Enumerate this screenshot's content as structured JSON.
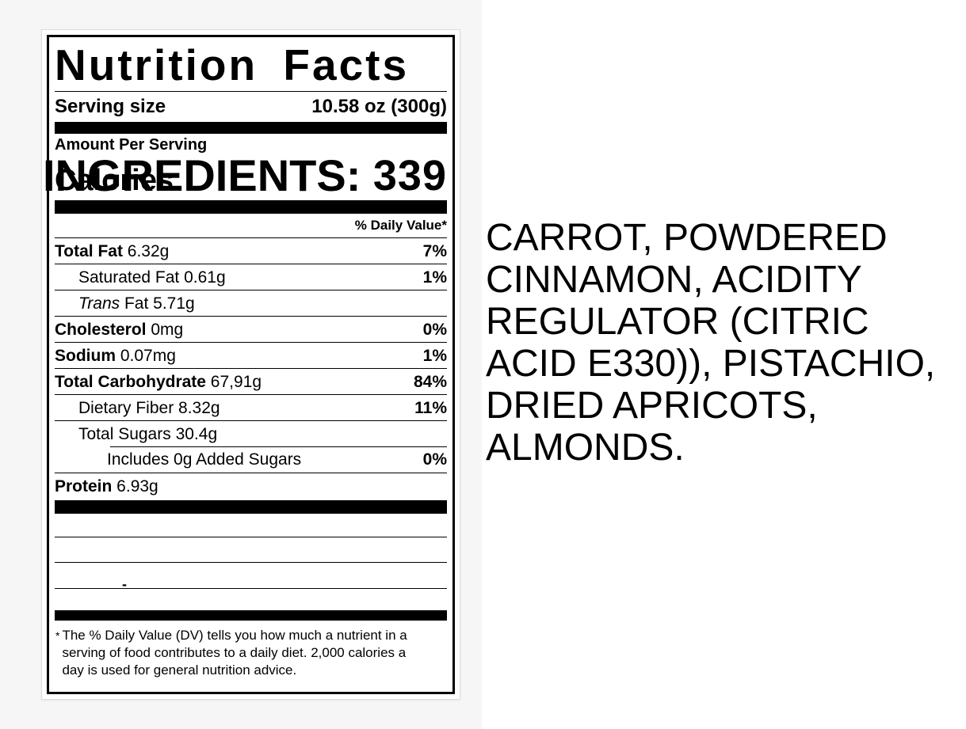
{
  "nutrition_label": {
    "title": "Nutrition Facts",
    "serving_size_label": "Serving size",
    "serving_size_value": "10.58 oz (300g)",
    "amount_per_serving": "Amount Per Serving",
    "calories_label": "Calories",
    "calories_value": "339",
    "daily_value_header": "% Daily Value*",
    "rows": [
      {
        "name": "Total Fat",
        "amount": "6.32g",
        "dv": "7%",
        "bold": true,
        "indent": 0,
        "rule": "full"
      },
      {
        "name": "Saturated Fat",
        "amount": "0.61g",
        "dv": "1%",
        "bold": false,
        "indent": 1,
        "rule": "full"
      },
      {
        "name": "Trans",
        "amount": "Fat 5.71g",
        "dv": "",
        "bold": false,
        "indent": 1,
        "rule": "full",
        "italic_lead": true
      },
      {
        "name": "Cholesterol",
        "amount": "0mg",
        "dv": "0%",
        "bold": true,
        "indent": 0,
        "rule": "full"
      },
      {
        "name": "Sodium",
        "amount": "0.07mg",
        "dv": "1%",
        "bold": true,
        "indent": 0,
        "rule": "full"
      },
      {
        "name": "Total Carbohydrate",
        "amount": "67,91g",
        "dv": "84%",
        "bold": true,
        "indent": 0,
        "rule": "full"
      },
      {
        "name": "Dietary Fiber",
        "amount": "8.32g",
        "dv": "11%",
        "bold": false,
        "indent": 1,
        "rule": "full"
      },
      {
        "name": "Total Sugars",
        "amount": "30.4g",
        "dv": "",
        "bold": false,
        "indent": 1,
        "rule": "full"
      },
      {
        "name": "Includes 0g Added Sugars",
        "amount": "",
        "dv": "0%",
        "bold": false,
        "indent": 2,
        "rule": "indent"
      },
      {
        "name": "Protein",
        "amount": "6.93g",
        "dv": "",
        "bold": true,
        "indent": 0,
        "rule": "full",
        "protein": true
      }
    ],
    "blank_row_dash": "-",
    "footnote_marker": "*",
    "footnote_lines": [
      "The % Daily Value (DV) tells you how much a nutrient in a",
      "serving of food contributes to a daily diet. 2,000 calories a",
      "day is used for general nutrition advice."
    ]
  },
  "ingredients": {
    "heading": "INGREDIENTS:",
    "lines": [
      "CARROT, POWDERED",
      "CINNAMON, ACIDITY",
      "REGULATOR (CITRIC",
      "ACID E330)), PISTACHIO,",
      "DRIED APRICOTS,",
      "ALMONDS."
    ]
  }
}
